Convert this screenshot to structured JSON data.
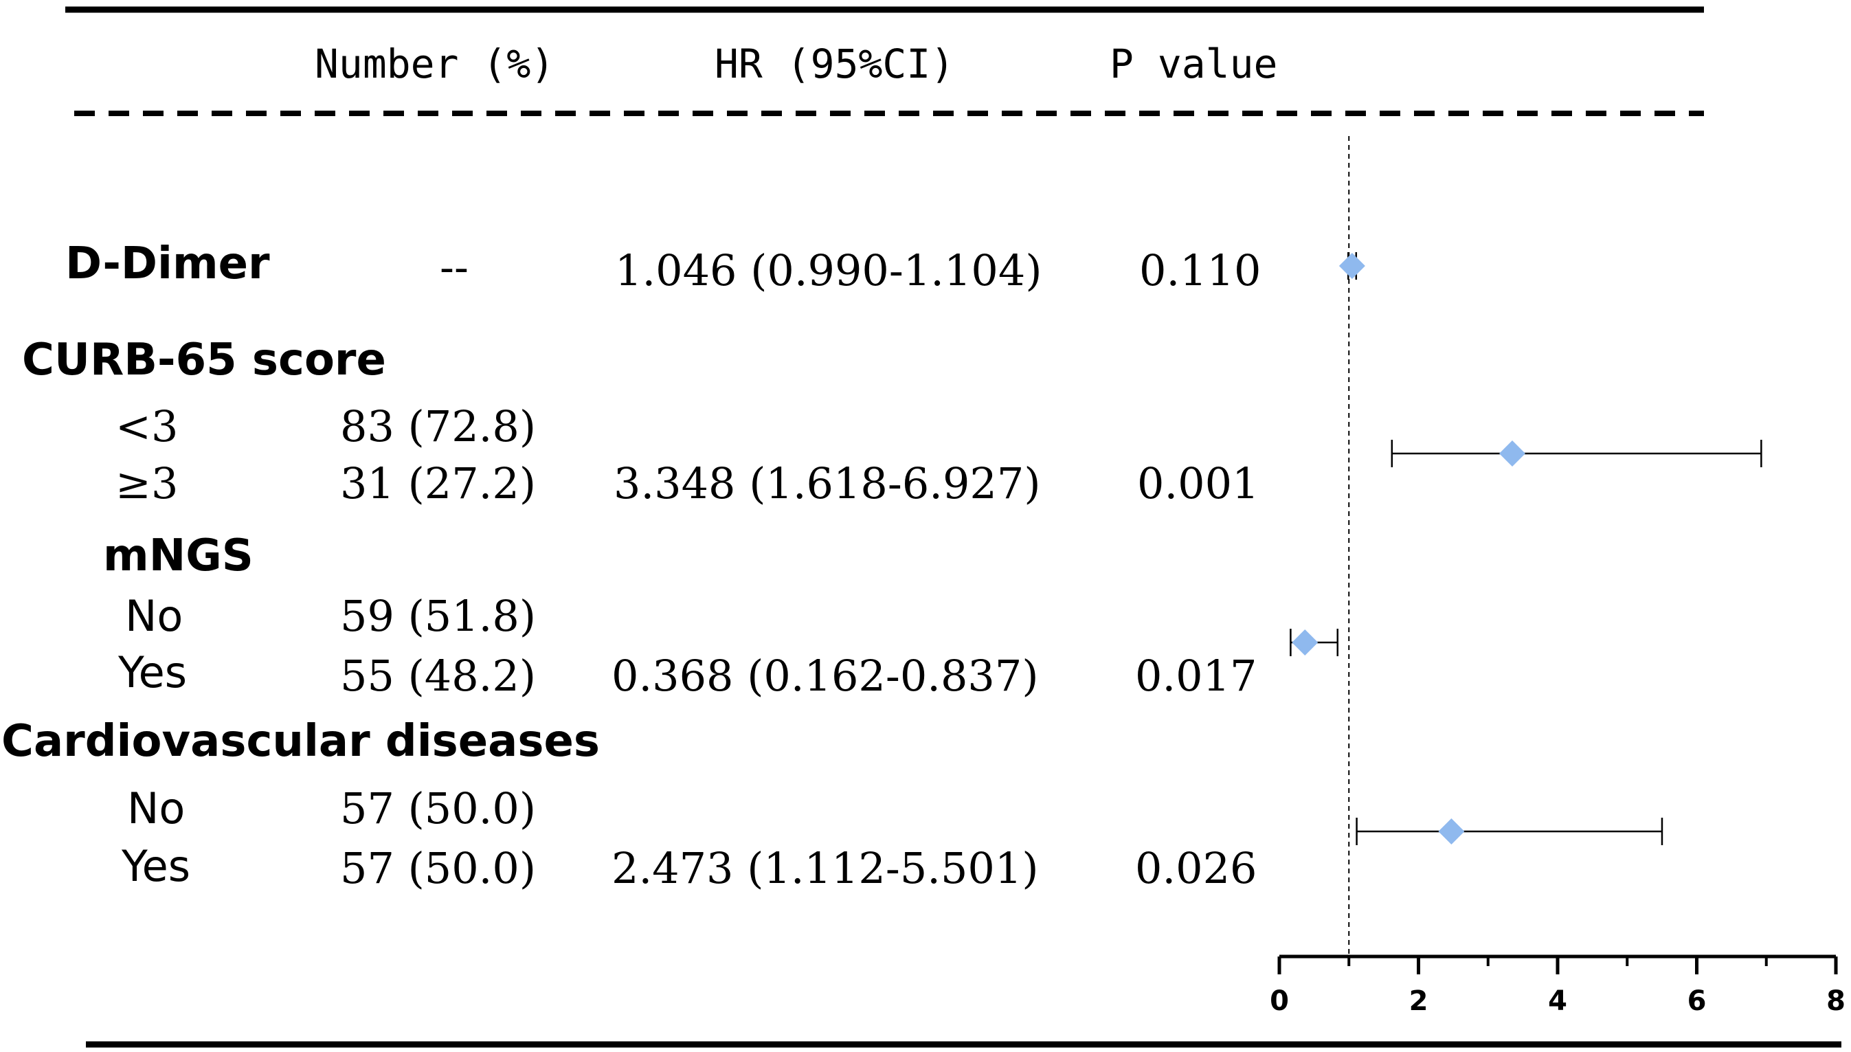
{
  "header": {
    "number_label": "Number (%)",
    "hr_label": "HR (95%CI)",
    "p_label": "P value"
  },
  "groups": {
    "ddimer": {
      "title": "D-Dimer",
      "number": "--",
      "hr_text": "1.046 (0.990-1.104)",
      "p_text": "0.110"
    },
    "curb": {
      "title": "CURB-65 score",
      "row1": {
        "label": "<3",
        "number": "83 (72.8)"
      },
      "row2": {
        "label": "≥3",
        "number": "31 (27.2)",
        "hr_text": "3.348 (1.618-6.927)",
        "p_text": "0.001"
      }
    },
    "mngs": {
      "title": "mNGS",
      "row1": {
        "label": "No",
        "number": "59 (51.8)"
      },
      "row2": {
        "label": "Yes",
        "number": "55 (48.2)",
        "hr_text": "0.368 (0.162-0.837)",
        "p_text": "0.017"
      }
    },
    "cvd": {
      "title": "Cardiovascular diseases",
      "row1": {
        "label": "No",
        "number": "57 (50.0)"
      },
      "row2": {
        "label": "Yes",
        "number": "57 (50.0)",
        "hr_text": "2.473 (1.112-5.501)",
        "p_text": "0.026"
      }
    }
  },
  "chart_data": {
    "type": "scatter",
    "marker": "diamond",
    "marker_color": "#8fb9ee",
    "reference_line": 1,
    "xlim": [
      0,
      8
    ],
    "xticks": [
      "0",
      "2",
      "4",
      "6",
      "8"
    ],
    "points": [
      {
        "group": "D-Dimer",
        "hr": 1.046,
        "lo": 0.99,
        "hi": 1.104
      },
      {
        "group": "CURB-65 score",
        "hr": 3.348,
        "lo": 1.618,
        "hi": 6.927
      },
      {
        "group": "mNGS",
        "hr": 0.368,
        "lo": 0.162,
        "hi": 0.837
      },
      {
        "group": "Cardiovascular diseases",
        "hr": 2.473,
        "lo": 1.112,
        "hi": 5.501
      }
    ]
  }
}
